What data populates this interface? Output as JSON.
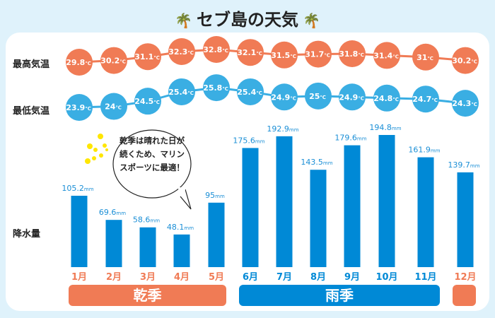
{
  "title": "セブ島の天気",
  "colors": {
    "max": "#f07b55",
    "min": "#3aaee3",
    "bar": "#0089d6",
    "dry": "#f07b55",
    "rainy": "#0089d6",
    "background": "#dff2fb"
  },
  "labels": {
    "max": "最高気温",
    "min": "最低気温",
    "rain": "降水量"
  },
  "bubble": [
    "乾季は晴れた日が",
    "続くため、マリン",
    "スポーツに最適！"
  ],
  "seasons": {
    "dry": "乾季",
    "rainy": "雨季"
  },
  "chart_data": {
    "type": "bar+line",
    "categories": [
      "1月",
      "2月",
      "3月",
      "4月",
      "5月",
      "6月",
      "7月",
      "8月",
      "9月",
      "10月",
      "11月",
      "12月"
    ],
    "season_of_month": [
      "dry",
      "dry",
      "dry",
      "dry",
      "dry",
      "rainy",
      "rainy",
      "rainy",
      "rainy",
      "rainy",
      "rainy",
      "dry"
    ],
    "series": [
      {
        "name": "最高気温",
        "type": "line",
        "unit": "℃",
        "values": [
          29.8,
          30.2,
          31.1,
          32.3,
          32.8,
          32.1,
          31.5,
          31.7,
          31.8,
          31.4,
          31,
          30.2
        ]
      },
      {
        "name": "最低気温",
        "type": "line",
        "unit": "℃",
        "values": [
          23.9,
          24,
          24.5,
          25.4,
          25.8,
          25.4,
          24.9,
          25,
          24.9,
          24.8,
          24.7,
          24.3
        ]
      },
      {
        "name": "降水量",
        "type": "bar",
        "unit": "mm",
        "values": [
          105.2,
          69.6,
          58.6,
          48.1,
          95,
          175.6,
          192.9,
          143.5,
          179.6,
          194.8,
          161.9,
          139.7
        ]
      }
    ]
  }
}
